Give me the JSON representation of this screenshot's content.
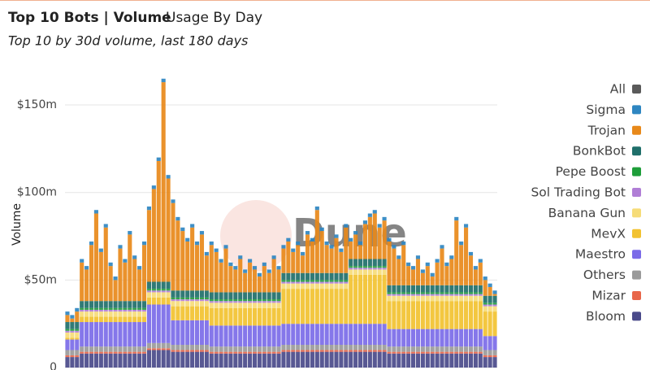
{
  "chart_data": {
    "type": "stacked-bar",
    "title": "Top 10 Bots | Volume",
    "tab": "Usage By Day",
    "subtitle": "Top 10 by 30d volume, last 180 days",
    "ylabel": "Volume",
    "watermark": "Dune",
    "ylim": [
      0,
      170
    ],
    "yticks": [
      {
        "value": 0,
        "label": "0"
      },
      {
        "value": 50,
        "label": "$50m"
      },
      {
        "value": 100,
        "label": "$100m"
      },
      {
        "value": 150,
        "label": "$150m"
      }
    ],
    "grid": true,
    "legend": "right",
    "categories": [
      null,
      null,
      null,
      null,
      null,
      null,
      null,
      null,
      null,
      null,
      null,
      null,
      null,
      null,
      null,
      null,
      null,
      null,
      null,
      null,
      null,
      null,
      null,
      null,
      null,
      null,
      null,
      null,
      null,
      null,
      null,
      null,
      null,
      null,
      null,
      null,
      null,
      null,
      null,
      null,
      null,
      null,
      null,
      null,
      null,
      null,
      null,
      null,
      null,
      null,
      null,
      null,
      null,
      null,
      null,
      null,
      null,
      null,
      null,
      null,
      null,
      null,
      null,
      null,
      null,
      null,
      null,
      null,
      null,
      null,
      null,
      null,
      null,
      null,
      null,
      null,
      null,
      null,
      null,
      null,
      null,
      null,
      null,
      null,
      null,
      null,
      null,
      null,
      null,
      null
    ],
    "series": [
      {
        "name": "All",
        "color": "#5a5a5a",
        "values": [
          null,
          null,
          null,
          null,
          null,
          null,
          null,
          null,
          null,
          null,
          null,
          null,
          null,
          null,
          null,
          null,
          null,
          null,
          null,
          null,
          null,
          null,
          null,
          null,
          null,
          null,
          null,
          null,
          null,
          null,
          null,
          null,
          null,
          null,
          null,
          null,
          null,
          null,
          null,
          null,
          null,
          null,
          null,
          null,
          null,
          null,
          null,
          null,
          null,
          null,
          null,
          null,
          null,
          null,
          null,
          null,
          null,
          null,
          null,
          null,
          null,
          null,
          null,
          null,
          null,
          null,
          null,
          null,
          null,
          null,
          null,
          null,
          null,
          null,
          null,
          null,
          null,
          null,
          null,
          null,
          null,
          null,
          null,
          null,
          null,
          null,
          null,
          null,
          null,
          null
        ]
      },
      {
        "name": "Sigma",
        "color": "#2e86c1",
        "values": [
          2,
          2,
          2,
          2,
          2,
          2,
          2,
          2,
          2,
          2,
          2,
          2,
          2,
          2,
          2,
          2,
          2,
          2,
          2,
          2,
          2,
          2,
          2,
          2,
          2,
          2,
          2,
          2,
          2,
          2,
          2,
          2,
          2,
          2,
          2,
          2,
          2,
          2,
          2,
          2,
          2,
          2,
          2,
          2,
          2,
          2,
          2,
          2,
          2,
          2,
          2,
          2,
          2,
          2,
          2,
          2,
          2,
          2,
          2,
          2,
          2,
          2,
          2,
          2,
          2,
          2,
          2,
          2,
          2,
          2,
          2,
          2,
          2,
          2,
          2,
          2,
          2,
          2,
          2,
          2,
          2,
          2,
          2,
          2,
          2,
          2,
          2,
          2,
          2,
          2
        ]
      },
      {
        "name": "Trojan",
        "color": "#e8891a",
        "values": [
          4,
          2,
          6,
          22,
          18,
          32,
          50,
          28,
          42,
          20,
          12,
          30,
          22,
          38,
          24,
          18,
          32,
          41,
          53,
          69,
          114,
          59,
          50,
          40,
          34,
          28,
          36,
          26,
          32,
          20,
          27,
          23,
          17,
          25,
          15,
          13,
          19,
          11,
          17,
          13,
          9,
          15,
          11,
          19,
          13,
          14,
          18,
          12,
          16,
          10,
          22,
          18,
          36,
          24,
          16,
          14,
          20,
          12,
          26,
          10,
          14,
          8,
          20,
          24,
          26,
          18,
          22,
          25,
          21,
          15,
          23,
          11,
          9,
          15,
          7,
          11,
          5,
          13,
          21,
          11,
          15,
          37,
          23,
          33,
          17,
          9,
          13,
          9,
          5,
          1
        ]
      },
      {
        "name": "BonkBot",
        "color": "#1f6f6a",
        "values": [
          4,
          4,
          4,
          4,
          4,
          4,
          4,
          4,
          4,
          4,
          4,
          4,
          4,
          4,
          4,
          4,
          4,
          4,
          4,
          4,
          4,
          4,
          4,
          4,
          4,
          4,
          4,
          4,
          4,
          4,
          4,
          4,
          4,
          4,
          4,
          4,
          4,
          4,
          4,
          4,
          4,
          4,
          4,
          4,
          4,
          4,
          4,
          4,
          4,
          4,
          4,
          4,
          4,
          4,
          4,
          4,
          4,
          4,
          4,
          4,
          4,
          4,
          4,
          4,
          4,
          4,
          4,
          4,
          4,
          4,
          4,
          4,
          4,
          4,
          4,
          4,
          4,
          4,
          4,
          4,
          4,
          4,
          4,
          4,
          4,
          4,
          4,
          4,
          4,
          4
        ]
      },
      {
        "name": "Pepe Boost",
        "color": "#1e9e3a",
        "values": [
          1,
          1,
          1,
          1,
          1,
          1,
          1,
          1,
          1,
          1,
          1,
          1,
          1,
          1,
          1,
          1,
          1,
          1,
          1,
          1,
          1,
          1,
          1,
          1,
          1,
          1,
          1,
          1,
          1,
          1,
          1,
          1,
          1,
          1,
          1,
          1,
          1,
          1,
          1,
          1,
          1,
          1,
          1,
          1,
          1,
          1,
          1,
          1,
          1,
          1,
          1,
          1,
          1,
          1,
          1,
          1,
          1,
          1,
          1,
          1,
          1,
          1,
          1,
          1,
          1,
          1,
          1,
          1,
          1,
          1,
          1,
          1,
          1,
          1,
          1,
          1,
          1,
          1,
          1,
          1,
          1,
          1,
          1,
          1,
          1,
          1,
          1,
          1,
          1,
          1
        ]
      },
      {
        "name": "Sol Trading Bot",
        "color": "#b07ed6",
        "values": [
          1,
          1,
          1,
          1,
          1,
          1,
          1,
          1,
          1,
          1,
          1,
          1,
          1,
          1,
          1,
          1,
          1,
          1,
          1,
          1,
          1,
          1,
          1,
          1,
          1,
          1,
          1,
          1,
          1,
          1,
          1,
          1,
          1,
          1,
          1,
          1,
          1,
          1,
          1,
          1,
          1,
          1,
          1,
          1,
          1,
          1,
          1,
          1,
          1,
          1,
          1,
          1,
          1,
          1,
          1,
          1,
          1,
          1,
          1,
          1,
          1,
          1,
          1,
          1,
          1,
          1,
          1,
          1,
          1,
          1,
          1,
          1,
          1,
          1,
          1,
          1,
          1,
          1,
          1,
          1,
          1,
          1,
          1,
          1,
          1,
          1,
          1,
          1,
          1,
          1
        ]
      },
      {
        "name": "Banana Gun",
        "color": "#f6dc78",
        "values": [
          3,
          3,
          3,
          3,
          3,
          3,
          3,
          3,
          3,
          3,
          3,
          3,
          3,
          3,
          3,
          3,
          3,
          3,
          3,
          3,
          3,
          3,
          3,
          3,
          3,
          3,
          3,
          3,
          3,
          3,
          3,
          3,
          3,
          3,
          3,
          3,
          3,
          3,
          3,
          3,
          3,
          3,
          3,
          3,
          3,
          3,
          3,
          3,
          3,
          3,
          3,
          3,
          3,
          3,
          3,
          3,
          3,
          3,
          3,
          3,
          3,
          3,
          3,
          3,
          3,
          3,
          3,
          3,
          3,
          3,
          3,
          3,
          3,
          3,
          3,
          3,
          3,
          3,
          3,
          3,
          3,
          3,
          3,
          3,
          3,
          3,
          3,
          3,
          3,
          3
        ]
      },
      {
        "name": "MevX",
        "color": "#f2c230",
        "values": [
          1,
          1,
          1,
          3,
          3,
          3,
          3,
          3,
          3,
          3,
          3,
          3,
          3,
          3,
          3,
          3,
          3,
          4,
          4,
          4,
          4,
          4,
          8,
          8,
          8,
          8,
          8,
          8,
          8,
          8,
          10,
          10,
          10,
          10,
          10,
          10,
          10,
          10,
          10,
          10,
          10,
          10,
          10,
          10,
          10,
          20,
          20,
          20,
          20,
          20,
          20,
          20,
          20,
          20,
          20,
          20,
          20,
          20,
          20,
          28,
          28,
          28,
          28,
          28,
          28,
          28,
          28,
          16,
          16,
          16,
          16,
          16,
          16,
          16,
          16,
          16,
          16,
          16,
          16,
          16,
          16,
          16,
          16,
          16,
          16,
          16,
          16,
          14,
          14,
          14
        ]
      },
      {
        "name": "Maestro",
        "color": "#7b6be8",
        "values": [
          6,
          6,
          6,
          14,
          14,
          14,
          14,
          14,
          14,
          14,
          14,
          14,
          14,
          14,
          14,
          14,
          14,
          22,
          22,
          22,
          22,
          22,
          14,
          14,
          14,
          14,
          14,
          14,
          14,
          14,
          12,
          12,
          12,
          12,
          12,
          12,
          12,
          12,
          12,
          12,
          12,
          12,
          12,
          12,
          12,
          12,
          12,
          12,
          12,
          12,
          12,
          12,
          12,
          12,
          12,
          12,
          12,
          12,
          12,
          12,
          12,
          12,
          12,
          12,
          12,
          12,
          12,
          10,
          10,
          10,
          10,
          10,
          10,
          10,
          10,
          10,
          10,
          10,
          10,
          10,
          10,
          10,
          10,
          10,
          10,
          10,
          10,
          8,
          8,
          8
        ]
      },
      {
        "name": "Others",
        "color": "#9a9a9a",
        "values": [
          3,
          3,
          3,
          3,
          3,
          3,
          3,
          3,
          3,
          3,
          3,
          3,
          3,
          3,
          3,
          3,
          3,
          3,
          3,
          3,
          3,
          3,
          3,
          3,
          3,
          3,
          3,
          3,
          3,
          3,
          3,
          3,
          3,
          3,
          3,
          3,
          3,
          3,
          3,
          3,
          3,
          3,
          3,
          3,
          3,
          3,
          3,
          3,
          3,
          3,
          3,
          3,
          3,
          3,
          3,
          3,
          3,
          3,
          3,
          3,
          3,
          3,
          3,
          3,
          3,
          3,
          3,
          3,
          3,
          3,
          3,
          3,
          3,
          3,
          3,
          3,
          3,
          3,
          3,
          3,
          3,
          3,
          3,
          3,
          3,
          3,
          3,
          3,
          3,
          3
        ]
      },
      {
        "name": "Mizar",
        "color": "#e8664a",
        "values": [
          1,
          1,
          1,
          1,
          1,
          1,
          1,
          1,
          1,
          1,
          1,
          1,
          1,
          1,
          1,
          1,
          1,
          1,
          1,
          1,
          1,
          1,
          1,
          1,
          1,
          1,
          1,
          1,
          1,
          1,
          1,
          1,
          1,
          1,
          1,
          1,
          1,
          1,
          1,
          1,
          1,
          1,
          1,
          1,
          1,
          1,
          1,
          1,
          1,
          1,
          1,
          1,
          1,
          1,
          1,
          1,
          1,
          1,
          1,
          1,
          1,
          1,
          1,
          1,
          1,
          1,
          1,
          1,
          1,
          1,
          1,
          1,
          1,
          1,
          1,
          1,
          1,
          1,
          1,
          1,
          1,
          1,
          1,
          1,
          1,
          1,
          1,
          1,
          1,
          1
        ]
      },
      {
        "name": "Bloom",
        "color": "#4a4a8a",
        "values": [
          6,
          6,
          6,
          8,
          8,
          8,
          8,
          8,
          8,
          8,
          8,
          8,
          8,
          8,
          8,
          8,
          8,
          10,
          10,
          10,
          10,
          10,
          9,
          9,
          9,
          9,
          9,
          9,
          9,
          9,
          8,
          8,
          8,
          8,
          8,
          8,
          8,
          8,
          8,
          8,
          8,
          8,
          8,
          8,
          8,
          9,
          9,
          9,
          9,
          9,
          9,
          9,
          9,
          9,
          9,
          9,
          9,
          9,
          9,
          9,
          9,
          9,
          9,
          9,
          9,
          9,
          9,
          8,
          8,
          8,
          8,
          8,
          8,
          8,
          8,
          8,
          8,
          8,
          8,
          8,
          8,
          8,
          8,
          8,
          8,
          8,
          8,
          6,
          6,
          6
        ]
      }
    ]
  }
}
